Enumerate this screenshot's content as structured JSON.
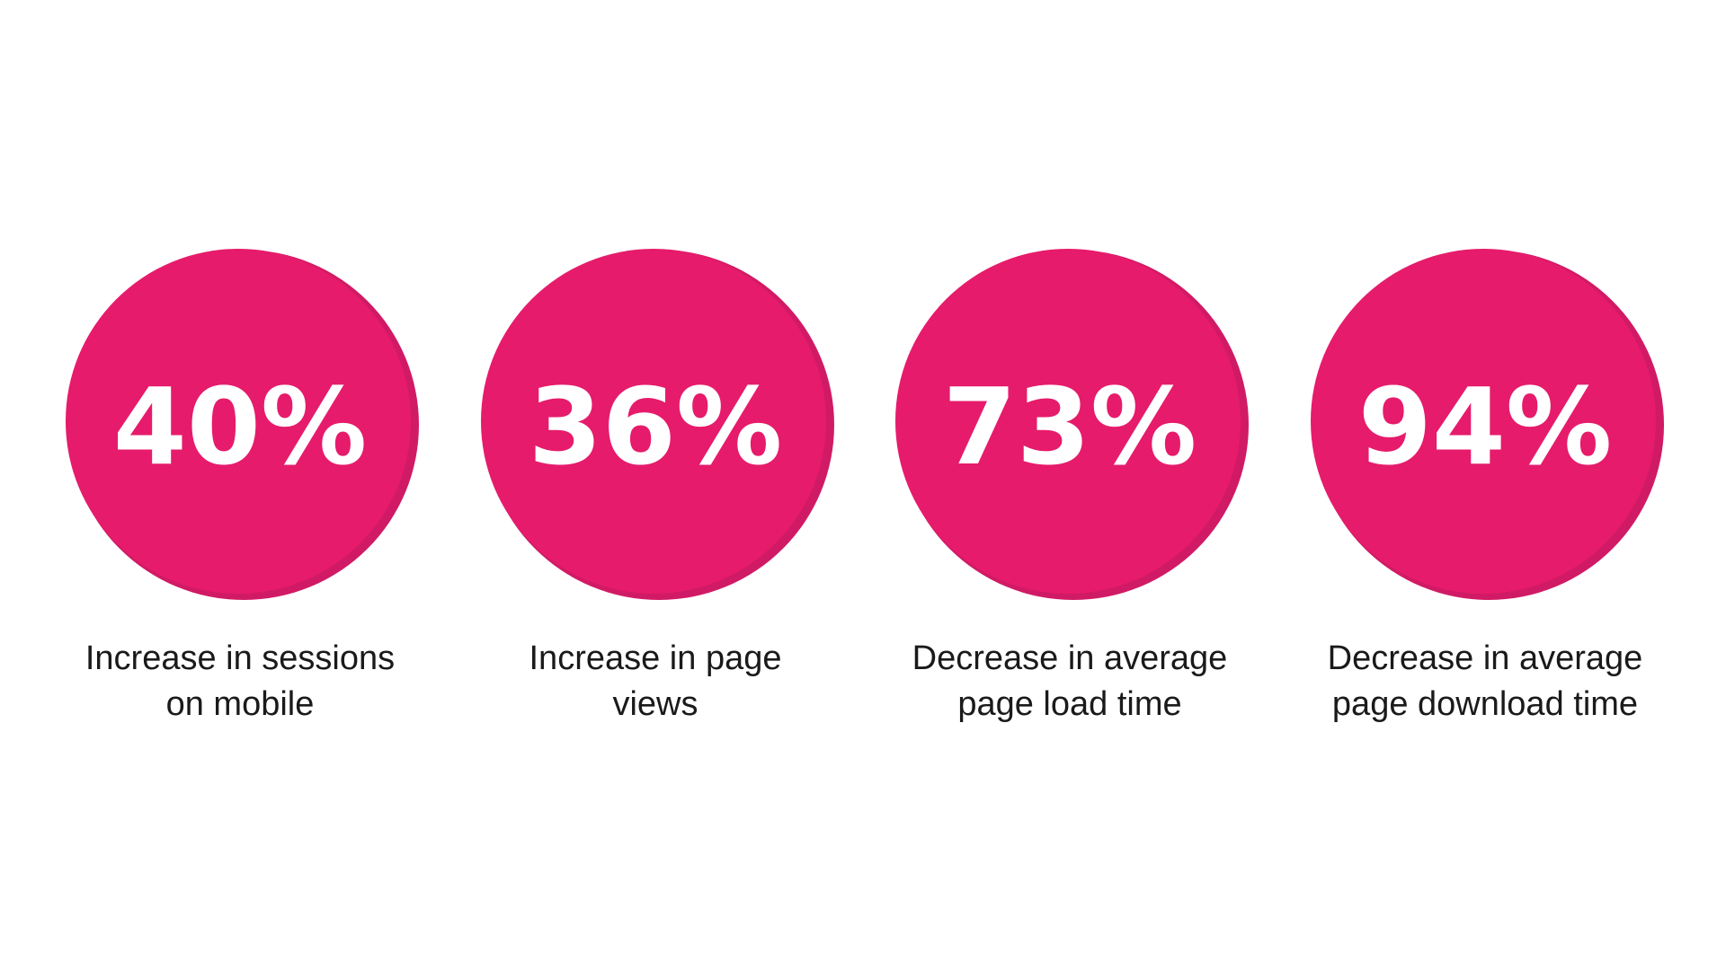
{
  "stats": [
    {
      "value": "40%",
      "label_lines": [
        "Increase in sessions",
        "on mobile"
      ]
    },
    {
      "value": "36%",
      "label_lines": [
        "Increase in page",
        "views"
      ]
    },
    {
      "value": "73%",
      "label_lines": [
        "Decrease in average",
        "page load time"
      ]
    },
    {
      "value": "94%",
      "label_lines": [
        "Decrease in average",
        "page download time"
      ]
    }
  ]
}
